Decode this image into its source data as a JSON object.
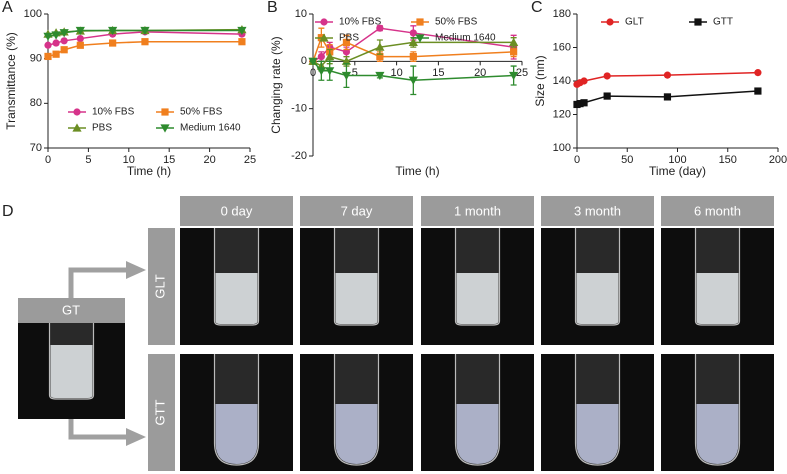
{
  "chart_data": [
    {
      "type": "line",
      "panel": "A",
      "xlabel": "Time (h)",
      "ylabel": "Transmittance (%)",
      "xlim": [
        0,
        25
      ],
      "xticks": [
        0,
        5,
        10,
        15,
        20,
        25
      ],
      "ylim": [
        70,
        100
      ],
      "yticks": [
        70,
        80,
        90,
        100
      ],
      "legend": "lower right",
      "series": [
        {
          "name": "10% FBS",
          "color": "#d6338a",
          "marker": "circle",
          "x": [
            0,
            1,
            2,
            4,
            8,
            12,
            24
          ],
          "values": [
            93,
            93.5,
            94,
            94.5,
            95.5,
            96,
            95.5
          ]
        },
        {
          "name": "50% FBS",
          "color": "#f07f1e",
          "marker": "square",
          "x": [
            0,
            1,
            2,
            4,
            8,
            12,
            24
          ],
          "values": [
            90.5,
            91,
            92,
            93,
            93.5,
            93.8,
            93.8
          ]
        },
        {
          "name": "PBS",
          "color": "#6b8e23",
          "marker": "triangle-up",
          "x": [
            0,
            1,
            2,
            4,
            8,
            12,
            24
          ],
          "values": [
            95.5,
            95.8,
            96,
            96.2,
            96.3,
            96.3,
            96.5
          ]
        },
        {
          "name": "Medium 1640",
          "color": "#2e8b2e",
          "marker": "triangle-down",
          "x": [
            0,
            1,
            2,
            4,
            8,
            12,
            24
          ],
          "values": [
            95,
            95.3,
            95.8,
            96.3,
            96.3,
            96.3,
            96.3
          ]
        }
      ]
    },
    {
      "type": "line",
      "panel": "B",
      "xlabel": "Time (h)",
      "ylabel": "Changing rate (%)",
      "xlim": [
        0,
        25
      ],
      "xticks": [
        0,
        5,
        10,
        15,
        20,
        25
      ],
      "ylim": [
        -20,
        10
      ],
      "yticks": [
        -20,
        -10,
        0,
        10
      ],
      "legend": "upper left",
      "series": [
        {
          "name": "10% FBS",
          "color": "#d6338a",
          "marker": "circle",
          "x": [
            0,
            1,
            2,
            4,
            8,
            12,
            24
          ],
          "values": [
            0,
            1,
            3,
            2,
            7,
            6,
            3
          ],
          "errors": [
            0,
            1,
            1,
            1,
            0.5,
            1.5,
            2.5
          ]
        },
        {
          "name": "50% FBS",
          "color": "#f07f1e",
          "marker": "square",
          "x": [
            0,
            1,
            2,
            4,
            8,
            12,
            24
          ],
          "values": [
            0,
            5,
            2,
            4,
            1,
            1,
            2
          ],
          "errors": [
            0,
            2,
            1.5,
            1.5,
            1,
            1,
            1
          ]
        },
        {
          "name": "PBS",
          "color": "#6b8e23",
          "marker": "triangle-up",
          "x": [
            0,
            1,
            2,
            4,
            8,
            12,
            24
          ],
          "values": [
            0,
            -1,
            1,
            0,
            3,
            4,
            4
          ],
          "errors": [
            0,
            1,
            1.5,
            1,
            1.5,
            1,
            1
          ]
        },
        {
          "name": "Medium 1640",
          "color": "#2e8b2e",
          "marker": "triangle-down",
          "x": [
            0,
            1,
            2,
            4,
            8,
            12,
            24
          ],
          "values": [
            0,
            -2,
            -2,
            -3,
            -3,
            -4,
            -3
          ],
          "errors": [
            0,
            2,
            2,
            2.5,
            0.5,
            3,
            2
          ]
        }
      ]
    },
    {
      "type": "line",
      "panel": "C",
      "xlabel": "Time (day)",
      "ylabel": "Size (nm)",
      "xlim": [
        0,
        200
      ],
      "xticks": [
        0,
        50,
        100,
        150,
        200
      ],
      "ylim": [
        100,
        180
      ],
      "yticks": [
        100,
        120,
        140,
        160,
        180
      ],
      "legend": "upper",
      "series": [
        {
          "name": "GLT",
          "color": "#e02424",
          "marker": "circle",
          "x": [
            0,
            3,
            7,
            30,
            90,
            180
          ],
          "values": [
            138,
            139,
            140,
            143,
            143.5,
            145
          ]
        },
        {
          "name": "GTT",
          "color": "#111111",
          "marker": "square",
          "x": [
            0,
            3,
            7,
            30,
            90,
            180
          ],
          "values": [
            126,
            126.5,
            127,
            131,
            130.5,
            134
          ]
        }
      ]
    }
  ],
  "photos": {
    "panel": "D",
    "source": "GT",
    "columns": [
      "0 day",
      "7 day",
      "1 month",
      "3 month",
      "6 month"
    ],
    "rows": [
      "GLT",
      "GTT"
    ]
  }
}
